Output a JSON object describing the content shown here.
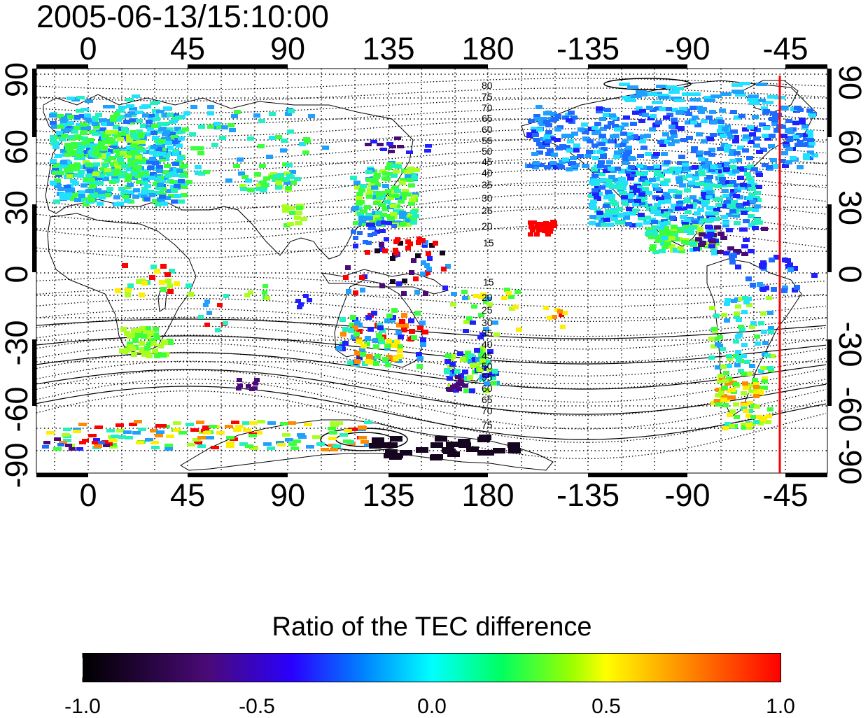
{
  "title": "2005-06-13/15:10:00",
  "top_ticks": [
    "0",
    "45",
    "90",
    "135",
    "180",
    "-135",
    "-90",
    "-45"
  ],
  "bottom_ticks": [
    "0",
    "45",
    "90",
    "135",
    "180",
    "-135",
    "-90",
    "-45"
  ],
  "left_ticks": [
    "90",
    "60",
    "30",
    "0",
    "-30",
    "-60",
    "-90"
  ],
  "right_ticks": [
    "90",
    "60",
    "30",
    "0",
    "-30",
    "-60",
    "-90"
  ],
  "contour_labels_north": [
    "80",
    "75",
    "70",
    "65",
    "60",
    "55",
    "50",
    "45",
    "40",
    "35",
    "30",
    "25",
    "20",
    "15"
  ],
  "contour_labels_south": [
    "15",
    "20",
    "25",
    "30",
    "35",
    "40",
    "45",
    "50",
    "55",
    "60",
    "65",
    "70",
    "75"
  ],
  "colorbar": {
    "title": "Ratio of the TEC difference",
    "ticks": [
      "-1.0",
      "-0.5",
      "0.0",
      "0.5",
      "1.0"
    ]
  },
  "colors": {
    "terminator_line": "#ff0000",
    "colormap": [
      "#000000",
      "#4a0a78",
      "#2a00ff",
      "#0080ff",
      "#00ffff",
      "#00ff60",
      "#9aff00",
      "#ffff00",
      "#ff9900",
      "#ff0000"
    ]
  }
}
